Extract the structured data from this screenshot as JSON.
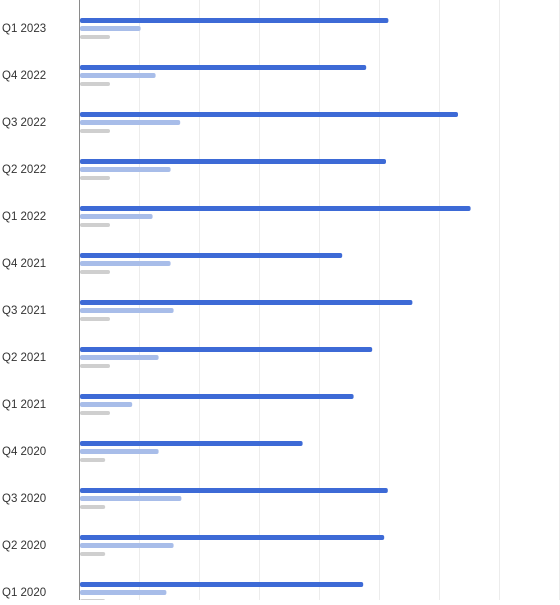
{
  "chart_data": {
    "type": "bar",
    "orientation": "horizontal",
    "title": "",
    "xlabel": "",
    "ylabel": "",
    "grid": true,
    "legend": "none",
    "xlim": [
      0,
      8
    ],
    "categories": [
      "Q1 2023",
      "Q4 2022",
      "Q3 2022",
      "Q2 2022",
      "Q1 2022",
      "Q4 2021",
      "Q3 2021",
      "Q2 2021",
      "Q1 2021",
      "Q4 2020",
      "Q3 2020",
      "Q2 2020",
      "Q1 2020"
    ],
    "series": [
      {
        "color": "#3d6ad6",
        "values": [
          5.14,
          4.77,
          6.3,
          5.1,
          6.51,
          4.37,
          5.54,
          4.87,
          4.56,
          3.71,
          5.13,
          5.07,
          4.72
        ]
      },
      {
        "color": "#a8bde9",
        "values": [
          1.01,
          1.26,
          1.67,
          1.51,
          1.21,
          1.51,
          1.56,
          1.31,
          0.87,
          1.31,
          1.69,
          1.56,
          1.44
        ]
      },
      {
        "color": "#cfcfcf",
        "values": [
          0.5,
          0.5,
          0.5,
          0.5,
          0.5,
          0.5,
          0.5,
          0.5,
          0.5,
          0.42,
          0.42,
          0.42,
          0.42
        ]
      }
    ]
  }
}
